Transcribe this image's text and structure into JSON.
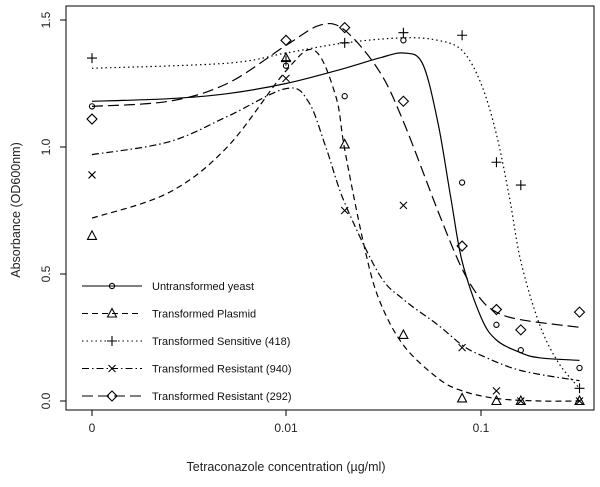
{
  "chart_data": {
    "type": "scatter",
    "title": "",
    "xlabel": "Tetraconazole concentration (µg/ml)",
    "ylabel": "Absorbance (OD600nm)",
    "x_scale": "log",
    "x_ticks": [
      "0",
      "0.01",
      "0.1"
    ],
    "y_ticks": [
      "0.0",
      "0.5",
      "1.0",
      "1.5"
    ],
    "ylim": [
      0,
      1.55
    ],
    "legend_position": "bottom-left",
    "series": [
      {
        "name": "Untransformed yeast",
        "marker": "circle",
        "line": "solid",
        "points": [
          [
            "0",
            1.16
          ],
          [
            "0.01",
            1.32
          ],
          [
            "0.02",
            1.2
          ],
          [
            "0.04",
            1.42
          ],
          [
            "0.08",
            0.86
          ],
          [
            "0.12",
            0.3
          ],
          [
            "0.16",
            0.2
          ],
          [
            "0.32",
            0.13
          ]
        ],
        "curve": [
          [
            "0",
            1.18
          ],
          [
            "0.0025",
            1.19
          ],
          [
            "0.005",
            1.21
          ],
          [
            "0.01",
            1.25
          ],
          [
            "0.02",
            1.31
          ],
          [
            "0.03",
            1.35
          ],
          [
            "0.04",
            1.37
          ],
          [
            "0.05",
            1.33
          ],
          [
            "0.06",
            1.1
          ],
          [
            "0.07",
            0.8
          ],
          [
            "0.08",
            0.55
          ],
          [
            "0.1",
            0.33
          ],
          [
            "0.12",
            0.24
          ],
          [
            "0.16",
            0.19
          ],
          [
            "0.2",
            0.17
          ],
          [
            "0.32",
            0.16
          ]
        ]
      },
      {
        "name": "Transformed Plasmid",
        "marker": "triangle",
        "line": "dashed",
        "points": [
          [
            "0",
            0.65
          ],
          [
            "0.01",
            1.35
          ],
          [
            "0.02",
            1.01
          ],
          [
            "0.04",
            0.26
          ],
          [
            "0.08",
            0.01
          ],
          [
            "0.12",
            0.0
          ],
          [
            "0.16",
            0.0
          ],
          [
            "0.32",
            0.0
          ]
        ],
        "curve": [
          [
            "0",
            0.72
          ],
          [
            "0.0025",
            0.82
          ],
          [
            "0.005",
            1.0
          ],
          [
            "0.01",
            1.3
          ],
          [
            "0.014",
            1.38
          ],
          [
            "0.018",
            1.2
          ],
          [
            "0.02",
            0.99
          ],
          [
            "0.025",
            0.62
          ],
          [
            "0.03",
            0.4
          ],
          [
            "0.04",
            0.22
          ],
          [
            "0.06",
            0.09
          ],
          [
            "0.08",
            0.04
          ],
          [
            "0.12",
            0.01
          ],
          [
            "0.2",
            0.0
          ],
          [
            "0.32",
            0.0
          ]
        ]
      },
      {
        "name": "Transformed Sensitive (418)",
        "marker": "plus",
        "line": "dotted",
        "points": [
          [
            "0",
            1.35
          ],
          [
            "0.01",
            1.34
          ],
          [
            "0.02",
            1.41
          ],
          [
            "0.04",
            1.45
          ],
          [
            "0.08",
            1.44
          ],
          [
            "0.12",
            0.94
          ],
          [
            "0.16",
            0.85
          ],
          [
            "0.32",
            0.05
          ]
        ],
        "curve": [
          [
            "0",
            1.31
          ],
          [
            "0.005",
            1.33
          ],
          [
            "0.01",
            1.37
          ],
          [
            "0.02",
            1.41
          ],
          [
            "0.04",
            1.43
          ],
          [
            "0.06",
            1.42
          ],
          [
            "0.08",
            1.38
          ],
          [
            "0.1",
            1.25
          ],
          [
            "0.12",
            1.05
          ],
          [
            "0.14",
            0.8
          ],
          [
            "0.16",
            0.55
          ],
          [
            "0.2",
            0.3
          ],
          [
            "0.25",
            0.15
          ],
          [
            "0.32",
            0.05
          ]
        ]
      },
      {
        "name": "Transformed Resistant (940)",
        "marker": "cross",
        "line": "dot-dash",
        "points": [
          [
            "0",
            0.89
          ],
          [
            "0.01",
            1.27
          ],
          [
            "0.02",
            0.75
          ],
          [
            "0.04",
            0.77
          ],
          [
            "0.08",
            0.21
          ],
          [
            "0.12",
            0.04
          ],
          [
            "0.16",
            0.0
          ],
          [
            "0.32",
            0.0
          ]
        ],
        "curve": [
          [
            "0",
            0.97
          ],
          [
            "0.0025",
            1.02
          ],
          [
            "0.005",
            1.12
          ],
          [
            "0.01",
            1.23
          ],
          [
            "0.013",
            1.18
          ],
          [
            "0.016",
            1.0
          ],
          [
            "0.02",
            0.78
          ],
          [
            "0.03",
            0.5
          ],
          [
            "0.04",
            0.4
          ],
          [
            "0.06",
            0.3
          ],
          [
            "0.08",
            0.22
          ],
          [
            "0.1",
            0.18
          ],
          [
            "0.16",
            0.12
          ],
          [
            "0.32",
            0.08
          ]
        ]
      },
      {
        "name": "Transformed Resistant (292)",
        "marker": "diamond",
        "line": "long-dash",
        "points": [
          [
            "0",
            1.11
          ],
          [
            "0.01",
            1.42
          ],
          [
            "0.02",
            1.47
          ],
          [
            "0.04",
            1.18
          ],
          [
            "0.08",
            0.61
          ],
          [
            "0.12",
            0.36
          ],
          [
            "0.16",
            0.28
          ],
          [
            "0.32",
            0.35
          ]
        ],
        "curve": [
          [
            "0",
            1.16
          ],
          [
            "0.0025",
            1.18
          ],
          [
            "0.005",
            1.25
          ],
          [
            "0.01",
            1.4
          ],
          [
            "0.015",
            1.48
          ],
          [
            "0.02",
            1.46
          ],
          [
            "0.03",
            1.3
          ],
          [
            "0.04",
            1.1
          ],
          [
            "0.06",
            0.75
          ],
          [
            "0.08",
            0.52
          ],
          [
            "0.1",
            0.4
          ],
          [
            "0.12",
            0.35
          ],
          [
            "0.16",
            0.32
          ],
          [
            "0.32",
            0.29
          ]
        ]
      }
    ]
  }
}
